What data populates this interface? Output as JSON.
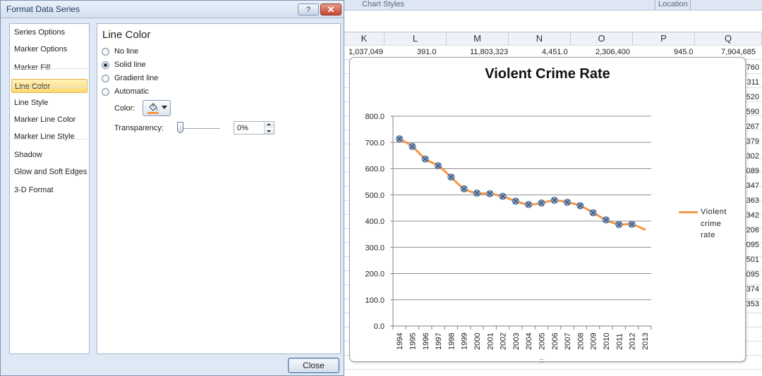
{
  "dialog": {
    "title": "Format Data Series",
    "help_label": "?",
    "close_x_label": "✕",
    "close_button": "Close",
    "nav_items": [
      "Series Options",
      "Marker Options",
      "Marker Fill",
      "Line Color",
      "Line Style",
      "Marker Line Color",
      "Marker Line Style",
      "Shadow",
      "Glow and Soft Edges",
      "3-D Format"
    ],
    "active_nav": "Line Color",
    "panel": {
      "heading": "Line Color",
      "options": [
        "No line",
        "Solid line",
        "Gradient line",
        "Automatic"
      ],
      "selected_option": "Solid line",
      "color_label": "Color:",
      "color_icon": "paint-bucket-icon",
      "color_value": "#f79646",
      "transparency_label": "Transparency:",
      "transparency_value": "0%",
      "transparency_fraction": 0
    }
  },
  "excel": {
    "ribbon_groups": [
      "Chart Styles",
      "Location"
    ],
    "columns": [
      "K",
      "L",
      "M",
      "N",
      "O",
      "P",
      "Q"
    ],
    "top_row_values": [
      "1,037,049",
      "391.0",
      "11,803,323",
      "4,451.0",
      "2,306,400",
      "945.0",
      "7,904,685"
    ],
    "right_cells": [
      "760",
      "311",
      "520",
      "590",
      "267",
      "379",
      "302",
      "089",
      "347",
      "363",
      "342",
      "206",
      "095",
      "501",
      "095",
      "374",
      "353"
    ]
  },
  "chart_data": {
    "type": "line",
    "title": "Violent Crime Rate",
    "categories": [
      "1994",
      "1995",
      "1996",
      "1997",
      "1998",
      "1999",
      "2000",
      "2001",
      "2002",
      "2003",
      "2004",
      "2005",
      "2006",
      "2007",
      "2008",
      "2009",
      "2010",
      "2011",
      "2012",
      "2013"
    ],
    "series": [
      {
        "name": "Violent crime rate",
        "values": [
          713.6,
          684.5,
          636.6,
          611.0,
          567.6,
          523.0,
          506.5,
          504.5,
          494.4,
          475.8,
          463.2,
          469.0,
          479.3,
          471.8,
          458.6,
          431.9,
          404.5,
          387.1,
          387.8,
          367.9
        ],
        "color": "#f79646",
        "marker_color": "#8aa5c8",
        "markers_through": "2012"
      }
    ],
    "ylim": [
      0,
      800
    ],
    "yticks": [
      "0.0",
      "100.0",
      "200.0",
      "300.0",
      "400.0",
      "500.0",
      "600.0",
      "700.0",
      "800.0"
    ],
    "grid": true,
    "legend": "right"
  }
}
